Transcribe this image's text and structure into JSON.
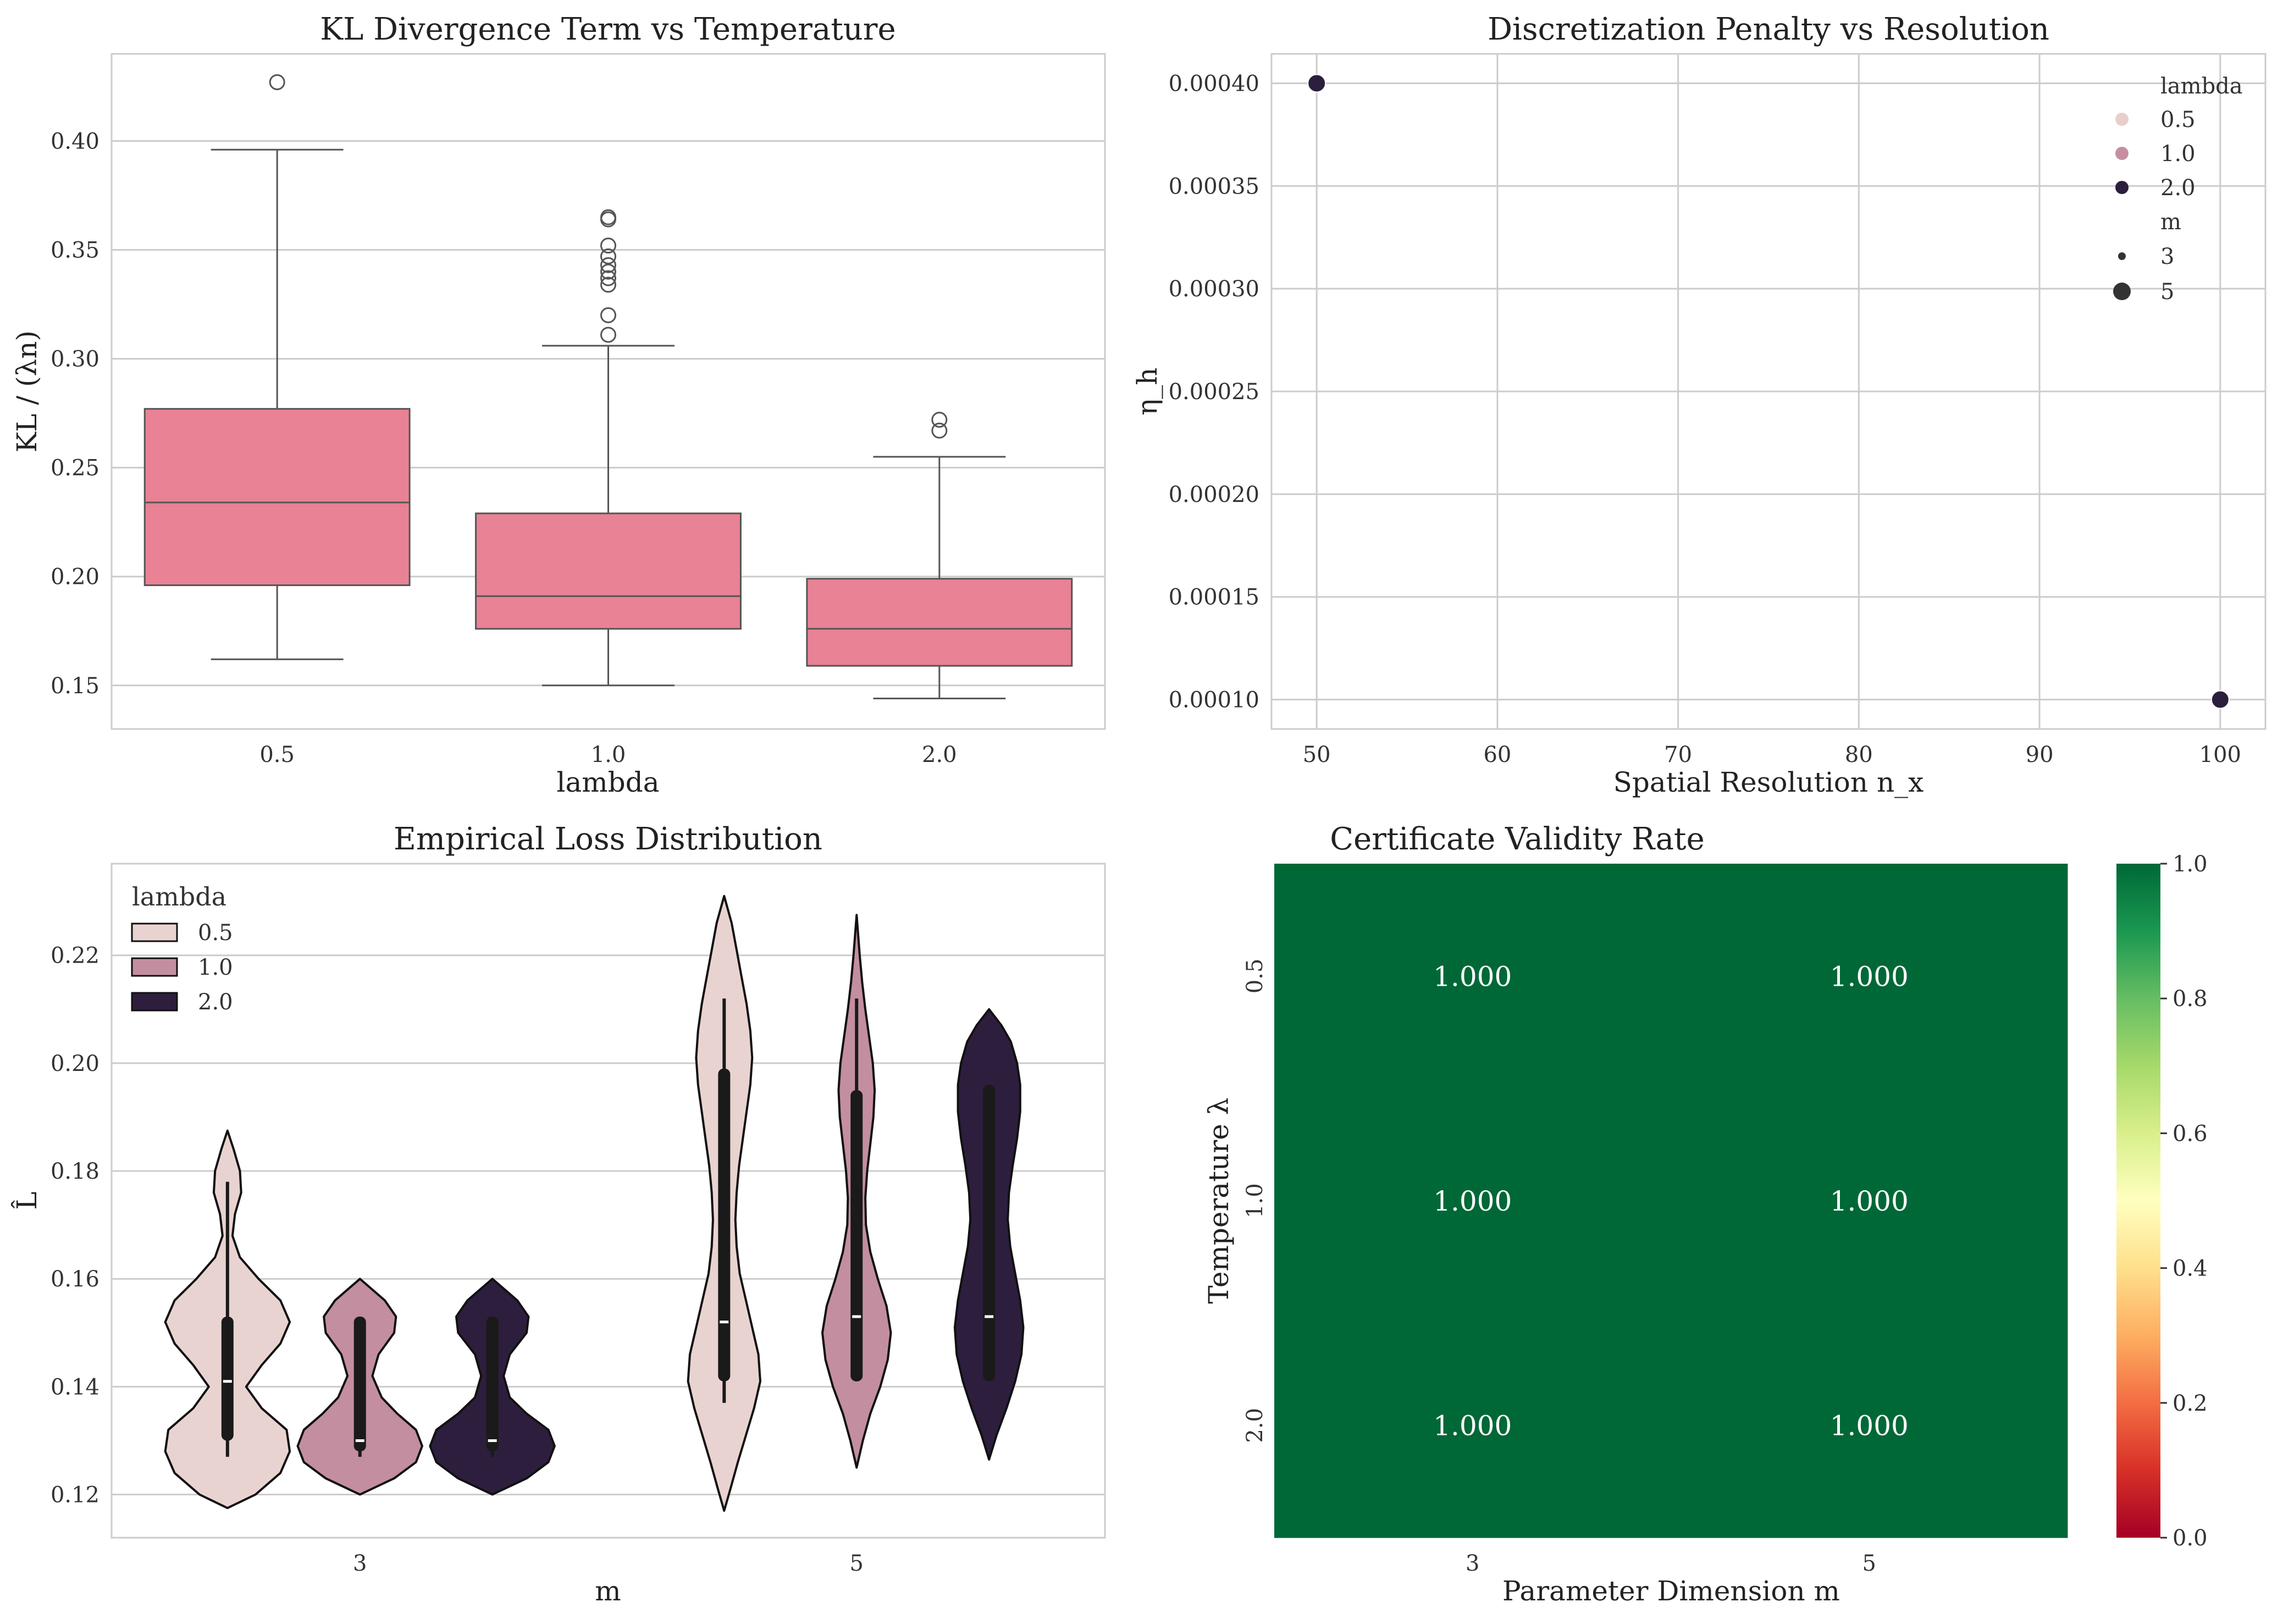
{
  "figure": {
    "background": "#ffffff",
    "grid_color": "#cccccc",
    "spine_color": "#cccccc"
  },
  "chart_data": [
    {
      "type": "box",
      "title": "KL Divergence Term vs Temperature",
      "xlabel": "lambda",
      "ylabel": "KL / (λn)",
      "categories": [
        "0.5",
        "1.0",
        "2.0"
      ],
      "ylim": [
        0.13,
        0.44
      ],
      "yticks": [
        0.15,
        0.2,
        0.25,
        0.3,
        0.35,
        0.4
      ],
      "ytick_labels": [
        "0.15",
        "0.20",
        "0.25",
        "0.30",
        "0.35",
        "0.40"
      ],
      "box_color": "#e88294",
      "boxes": [
        {
          "category": "0.5",
          "whisker_low": 0.162,
          "q1": 0.196,
          "median": 0.234,
          "q3": 0.277,
          "whisker_high": 0.396,
          "outliers": [
            0.427
          ]
        },
        {
          "category": "1.0",
          "whisker_low": 0.15,
          "q1": 0.176,
          "median": 0.191,
          "q3": 0.229,
          "whisker_high": 0.306,
          "outliers": [
            0.311,
            0.32,
            0.334,
            0.337,
            0.34,
            0.343,
            0.347,
            0.352,
            0.364,
            0.365
          ]
        },
        {
          "category": "2.0",
          "whisker_low": 0.144,
          "q1": 0.159,
          "median": 0.176,
          "q3": 0.199,
          "whisker_high": 0.255,
          "outliers": [
            0.267,
            0.272
          ]
        }
      ]
    },
    {
      "type": "scatter",
      "title": "Discretization Penalty vs Resolution",
      "xlabel": "Spatial Resolution n_x",
      "ylabel": "η_h",
      "xlim": [
        47.5,
        102.5
      ],
      "ylim": [
        8.57e-05,
        0.0004143
      ],
      "xticks": [
        50,
        60,
        70,
        80,
        90,
        100
      ],
      "xtick_labels": [
        "50",
        "60",
        "70",
        "80",
        "90",
        "100"
      ],
      "yticks": [
        0.0001,
        0.00015,
        0.0002,
        0.00025,
        0.0003,
        0.00035,
        0.0004
      ],
      "ytick_labels": [
        "0.00010",
        "0.00015",
        "0.00020",
        "0.00025",
        "0.00030",
        "0.00035",
        "0.00040"
      ],
      "points": [
        {
          "x": 50,
          "y": 0.0004,
          "lambda": "2.0",
          "m": "5"
        },
        {
          "x": 100,
          "y": 0.0001,
          "lambda": "2.0",
          "m": "5"
        }
      ],
      "legend": {
        "placement": "upper-right",
        "hue_title": "lambda",
        "hue_entries": [
          {
            "label": "0.5",
            "color": "#e9cfcc"
          },
          {
            "label": "1.0",
            "color": "#c78ea2"
          },
          {
            "label": "2.0",
            "color": "#2c1e3d"
          }
        ],
        "size_title": "m",
        "size_entries": [
          {
            "label": "3",
            "size": "small"
          },
          {
            "label": "5",
            "size": "large"
          }
        ]
      }
    },
    {
      "type": "violin",
      "title": "Empirical Loss Distribution",
      "xlabel": "m",
      "ylabel": "L̂",
      "categories": [
        "3",
        "5"
      ],
      "ylim": [
        0.112,
        0.237
      ],
      "yticks": [
        0.12,
        0.14,
        0.16,
        0.18,
        0.2,
        0.22
      ],
      "ytick_labels": [
        "0.12",
        "0.14",
        "0.16",
        "0.18",
        "0.20",
        "0.22"
      ],
      "legend": {
        "placement": "upper-left",
        "title": "lambda",
        "entries": [
          {
            "label": "0.5",
            "color": "#e9d3d0"
          },
          {
            "label": "1.0",
            "color": "#c38ea0"
          },
          {
            "label": "2.0",
            "color": "#2d1e3e"
          }
        ]
      },
      "series": [
        {
          "name": "0.5",
          "m": "3",
          "min": 0.1175,
          "max": 0.1875,
          "whisker_low": 0.127,
          "q1": 0.13,
          "median": 0.141,
          "q3": 0.153,
          "whisker_high": 0.178,
          "density": [
            [
              0.1175,
              0.0
            ],
            [
              0.12,
              0.45
            ],
            [
              0.124,
              0.85
            ],
            [
              0.128,
              1.0
            ],
            [
              0.132,
              0.95
            ],
            [
              0.136,
              0.55
            ],
            [
              0.14,
              0.3
            ],
            [
              0.144,
              0.55
            ],
            [
              0.148,
              0.85
            ],
            [
              0.152,
              1.0
            ],
            [
              0.156,
              0.85
            ],
            [
              0.16,
              0.5
            ],
            [
              0.164,
              0.2
            ],
            [
              0.168,
              0.08
            ],
            [
              0.172,
              0.12
            ],
            [
              0.176,
              0.22
            ],
            [
              0.18,
              0.2
            ],
            [
              0.184,
              0.1
            ],
            [
              0.1875,
              0.0
            ]
          ]
        },
        {
          "name": "1.0",
          "m": "3",
          "min": 0.12,
          "max": 0.16,
          "whisker_low": 0.127,
          "q1": 0.128,
          "median": 0.13,
          "q3": 0.153,
          "whisker_high": 0.153,
          "density": [
            [
              0.12,
              0.0
            ],
            [
              0.123,
              0.55
            ],
            [
              0.126,
              0.9
            ],
            [
              0.129,
              1.0
            ],
            [
              0.132,
              0.9
            ],
            [
              0.135,
              0.6
            ],
            [
              0.138,
              0.35
            ],
            [
              0.142,
              0.2
            ],
            [
              0.146,
              0.3
            ],
            [
              0.15,
              0.55
            ],
            [
              0.153,
              0.58
            ],
            [
              0.156,
              0.4
            ],
            [
              0.158,
              0.2
            ],
            [
              0.16,
              0.0
            ]
          ]
        },
        {
          "name": "2.0",
          "m": "3",
          "min": 0.12,
          "max": 0.16,
          "whisker_low": 0.127,
          "q1": 0.128,
          "median": 0.13,
          "q3": 0.153,
          "whisker_high": 0.153,
          "density": [
            [
              0.12,
              0.0
            ],
            [
              0.123,
              0.55
            ],
            [
              0.126,
              0.9
            ],
            [
              0.129,
              1.0
            ],
            [
              0.132,
              0.9
            ],
            [
              0.135,
              0.55
            ],
            [
              0.138,
              0.28
            ],
            [
              0.142,
              0.18
            ],
            [
              0.146,
              0.28
            ],
            [
              0.15,
              0.55
            ],
            [
              0.153,
              0.58
            ],
            [
              0.156,
              0.4
            ],
            [
              0.158,
              0.2
            ],
            [
              0.16,
              0.0
            ]
          ]
        },
        {
          "name": "0.5",
          "m": "5",
          "min": 0.117,
          "max": 0.231,
          "whisker_low": 0.137,
          "q1": 0.141,
          "median": 0.152,
          "q3": 0.199,
          "whisker_high": 0.212,
          "density": [
            [
              0.117,
              0.0
            ],
            [
              0.121,
              0.1
            ],
            [
              0.126,
              0.22
            ],
            [
              0.131,
              0.35
            ],
            [
              0.136,
              0.48
            ],
            [
              0.141,
              0.58
            ],
            [
              0.146,
              0.55
            ],
            [
              0.151,
              0.45
            ],
            [
              0.156,
              0.35
            ],
            [
              0.161,
              0.25
            ],
            [
              0.166,
              0.2
            ],
            [
              0.171,
              0.18
            ],
            [
              0.176,
              0.2
            ],
            [
              0.181,
              0.24
            ],
            [
              0.186,
              0.3
            ],
            [
              0.191,
              0.36
            ],
            [
              0.196,
              0.42
            ],
            [
              0.201,
              0.45
            ],
            [
              0.206,
              0.42
            ],
            [
              0.211,
              0.36
            ],
            [
              0.216,
              0.28
            ],
            [
              0.221,
              0.2
            ],
            [
              0.226,
              0.12
            ],
            [
              0.231,
              0.0
            ]
          ]
        },
        {
          "name": "1.0",
          "m": "5",
          "min": 0.125,
          "max": 0.2275,
          "whisker_low": 0.141,
          "q1": 0.141,
          "median": 0.153,
          "q3": 0.195,
          "whisker_high": 0.212,
          "density": [
            [
              0.125,
              0.0
            ],
            [
              0.13,
              0.1
            ],
            [
              0.135,
              0.22
            ],
            [
              0.14,
              0.38
            ],
            [
              0.145,
              0.5
            ],
            [
              0.15,
              0.55
            ],
            [
              0.155,
              0.48
            ],
            [
              0.16,
              0.34
            ],
            [
              0.165,
              0.22
            ],
            [
              0.17,
              0.15
            ],
            [
              0.175,
              0.14
            ],
            [
              0.18,
              0.17
            ],
            [
              0.185,
              0.22
            ],
            [
              0.19,
              0.27
            ],
            [
              0.195,
              0.29
            ],
            [
              0.2,
              0.26
            ],
            [
              0.205,
              0.2
            ],
            [
              0.21,
              0.14
            ],
            [
              0.215,
              0.09
            ],
            [
              0.22,
              0.05
            ],
            [
              0.2275,
              0.0
            ]
          ]
        },
        {
          "name": "2.0",
          "m": "5",
          "min": 0.1265,
          "max": 0.21,
          "whisker_low": 0.141,
          "q1": 0.141,
          "median": 0.153,
          "q3": 0.196,
          "whisker_high": 0.196,
          "density": [
            [
              0.1265,
              0.0
            ],
            [
              0.131,
              0.12
            ],
            [
              0.136,
              0.28
            ],
            [
              0.141,
              0.42
            ],
            [
              0.146,
              0.52
            ],
            [
              0.151,
              0.55
            ],
            [
              0.156,
              0.5
            ],
            [
              0.161,
              0.42
            ],
            [
              0.166,
              0.34
            ],
            [
              0.171,
              0.3
            ],
            [
              0.176,
              0.32
            ],
            [
              0.181,
              0.38
            ],
            [
              0.186,
              0.45
            ],
            [
              0.191,
              0.5
            ],
            [
              0.196,
              0.5
            ],
            [
              0.2,
              0.45
            ],
            [
              0.204,
              0.35
            ],
            [
              0.207,
              0.2
            ],
            [
              0.21,
              0.0
            ]
          ]
        }
      ]
    },
    {
      "type": "heatmap",
      "title": "Certificate Validity Rate",
      "xlabel": "Parameter Dimension m",
      "ylabel": "Temperature λ",
      "x_categories": [
        "3",
        "5"
      ],
      "y_categories": [
        "0.5",
        "1.0",
        "2.0"
      ],
      "values": [
        [
          1.0,
          1.0
        ],
        [
          1.0,
          1.0
        ],
        [
          1.0,
          1.0
        ]
      ],
      "cell_labels": [
        [
          "1.000",
          "1.000"
        ],
        [
          "1.000",
          "1.000"
        ],
        [
          "1.000",
          "1.000"
        ]
      ],
      "cell_color": "#006837",
      "colorbar": {
        "min": 0.0,
        "max": 1.0,
        "ticks": [
          0.0,
          0.2,
          0.4,
          0.6,
          0.8,
          1.0
        ],
        "tick_labels": [
          "0.0",
          "0.2",
          "0.4",
          "0.6",
          "0.8",
          "1.0"
        ],
        "colormap": "RdYlGn",
        "stops": [
          "#a50026",
          "#d73027",
          "#f46d43",
          "#fdae61",
          "#fee08b",
          "#ffffbf",
          "#d9ef8b",
          "#a6d96a",
          "#66bd63",
          "#1a9850",
          "#006837"
        ]
      }
    }
  ]
}
